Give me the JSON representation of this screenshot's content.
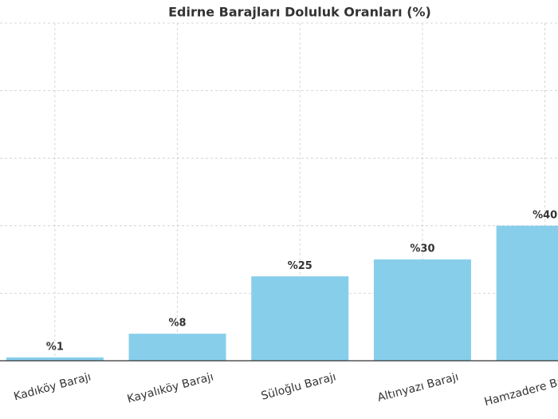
{
  "chart_data": {
    "type": "bar",
    "title": "Edirne Barajları Doluluk Oranları (%)",
    "categories": [
      "Kadıköy Barajı",
      "Kayalıköy Barajı",
      "Süloğlu Barajı",
      "Altınyazı Barajı",
      "Hamzadere Barajı"
    ],
    "values": [
      1,
      8,
      25,
      30,
      40
    ],
    "value_labels": [
      "%1",
      "%8",
      "%25",
      "%30",
      "%40"
    ],
    "color": "#87ceeb",
    "ylim": [
      0,
      100
    ],
    "yticks": [
      0,
      20,
      40,
      60,
      80,
      100
    ],
    "grid": true
  }
}
